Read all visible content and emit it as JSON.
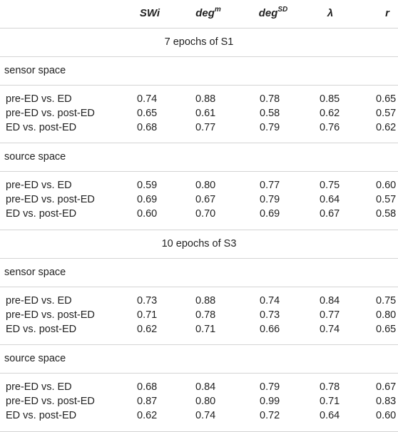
{
  "table": {
    "headers": {
      "swi": "SWi",
      "deg_m_base": "deg",
      "deg_m_sup": "m",
      "deg_sd_base": "deg",
      "deg_sd_sup": "SD",
      "lambda": "λ",
      "r": "r"
    },
    "sections": [
      {
        "title": "7 epochs of S1",
        "groups": [
          {
            "name": "sensor space",
            "rows": [
              {
                "label": "pre-ED vs. ED",
                "values": [
                  "0.74",
                  "0.88",
                  "0.78",
                  "0.85",
                  "0.65"
                ]
              },
              {
                "label": "pre-ED vs. post-ED",
                "values": [
                  "0.65",
                  "0.61",
                  "0.58",
                  "0.62",
                  "0.57"
                ]
              },
              {
                "label": "ED vs. post-ED",
                "values": [
                  "0.68",
                  "0.77",
                  "0.79",
                  "0.76",
                  "0.62"
                ]
              }
            ]
          },
          {
            "name": "source space",
            "rows": [
              {
                "label": "pre-ED vs. ED",
                "values": [
                  "0.59",
                  "0.80",
                  "0.77",
                  "0.75",
                  "0.60"
                ]
              },
              {
                "label": "pre-ED vs. post-ED",
                "values": [
                  "0.69",
                  "0.67",
                  "0.79",
                  "0.64",
                  "0.57"
                ]
              },
              {
                "label": "ED vs. post-ED",
                "values": [
                  "0.60",
                  "0.70",
                  "0.69",
                  "0.67",
                  "0.58"
                ]
              }
            ]
          }
        ]
      },
      {
        "title": "10 epochs of S3",
        "groups": [
          {
            "name": "sensor space",
            "rows": [
              {
                "label": "pre-ED vs. ED",
                "values": [
                  "0.73",
                  "0.88",
                  "0.74",
                  "0.84",
                  "0.75"
                ]
              },
              {
                "label": "pre-ED vs. post-ED",
                "values": [
                  "0.71",
                  "0.78",
                  "0.73",
                  "0.77",
                  "0.80"
                ]
              },
              {
                "label": "ED vs. post-ED",
                "values": [
                  "0.62",
                  "0.71",
                  "0.66",
                  "0.74",
                  "0.65"
                ]
              }
            ]
          },
          {
            "name": "source space",
            "rows": [
              {
                "label": "pre-ED vs. ED",
                "values": [
                  "0.68",
                  "0.84",
                  "0.79",
                  "0.78",
                  "0.67"
                ]
              },
              {
                "label": "pre-ED vs. post-ED",
                "values": [
                  "0.87",
                  "0.80",
                  "0.99",
                  "0.71",
                  "0.83"
                ]
              },
              {
                "label": "ED vs. post-ED",
                "values": [
                  "0.62",
                  "0.74",
                  "0.72",
                  "0.64",
                  "0.60"
                ]
              }
            ]
          }
        ]
      }
    ]
  }
}
